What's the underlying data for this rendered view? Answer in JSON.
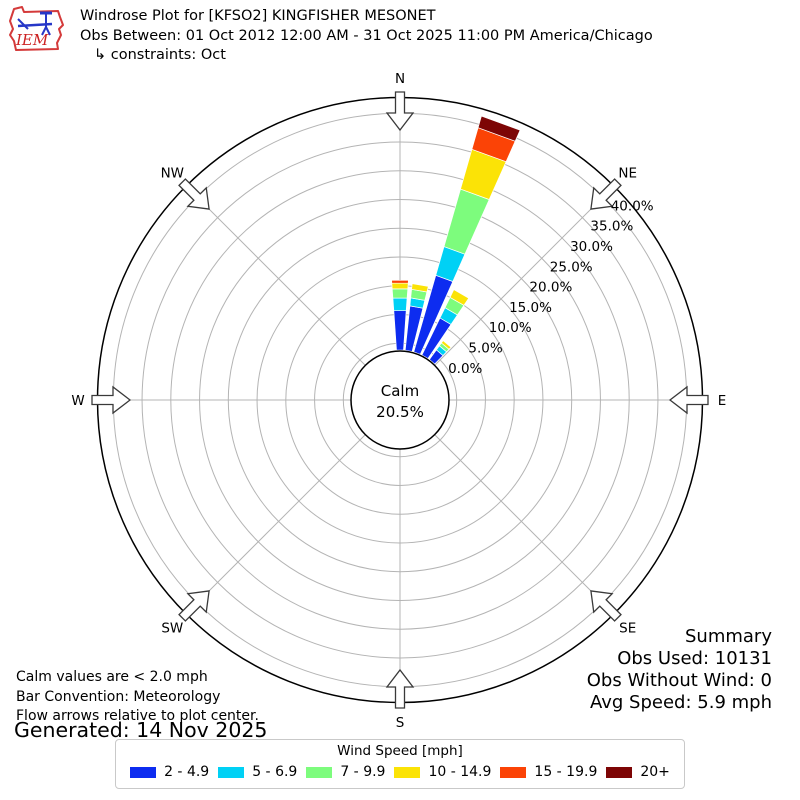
{
  "header": {
    "title": "Windrose Plot for [KFSO2] KINGFISHER MESONET",
    "subtitle": "Obs Between: 01 Oct 2012 12:00 AM - 31 Oct 2025 11:00 PM America/Chicago",
    "constraints": "↳ constraints: Oct",
    "logo_text": "IEM"
  },
  "notes": {
    "line1": "Calm values are < 2.0 mph",
    "line2": "Bar Convention: Meteorology",
    "line3": "Flow arrows relative to plot center.",
    "generated": "Generated: 14 Nov 2025"
  },
  "summary": {
    "title": "Summary",
    "obs_used": "Obs Used: 10131",
    "obs_without_wind": "Obs Without Wind: 0",
    "avg_speed": "Avg Speed: 5.9 mph"
  },
  "legend": {
    "title": "Wind Speed [mph]"
  },
  "chart_data": {
    "type": "windrose",
    "units": "mph",
    "sector_spacing_deg": 10,
    "sector_width_deg": 8,
    "direction_labels": [
      "N",
      "NE",
      "E",
      "SE",
      "S",
      "SW",
      "W",
      "NW"
    ],
    "ring_ticks": [
      {
        "value": 0,
        "label": "0.0%"
      },
      {
        "value": 5,
        "label": "5.0%"
      },
      {
        "value": 10,
        "label": "10.0%"
      },
      {
        "value": 15,
        "label": "15.0%"
      },
      {
        "value": 20,
        "label": "20.0%"
      },
      {
        "value": 25,
        "label": "25.0%"
      },
      {
        "value": 30,
        "label": "30.0%"
      },
      {
        "value": 35,
        "label": "35.0%"
      },
      {
        "value": 40,
        "label": "40.0%"
      }
    ],
    "rmax_pct": 42.8,
    "calm": {
      "label": "Calm",
      "value_label": "20.5%",
      "value_pct": 20.5
    },
    "speed_bins": [
      {
        "label": "2 - 4.9",
        "color": "#0d2cf0"
      },
      {
        "label": "5 - 6.9",
        "color": "#00d1f5"
      },
      {
        "label": "7 - 9.9",
        "color": "#7dfc7d"
      },
      {
        "label": "10 - 14.9",
        "color": "#fbe306"
      },
      {
        "label": "15 - 19.9",
        "color": "#fb4306"
      },
      {
        "label": "20+",
        "color": "#7d0505"
      }
    ],
    "bars": [
      {
        "dir_deg": 0,
        "pct": [
          5.7,
          2.2,
          1.6,
          1.0,
          0.5,
          0
        ]
      },
      {
        "dir_deg": 10,
        "pct": [
          6.6,
          1.4,
          1.5,
          1.0,
          0,
          0
        ]
      },
      {
        "dir_deg": 20,
        "pct": [
          12.7,
          5.2,
          10.4,
          7.2,
          3.9,
          2.1
        ]
      },
      {
        "dir_deg": 30,
        "pct": [
          6.0,
          2.0,
          2.0,
          1.5,
          0,
          0
        ]
      },
      {
        "dir_deg": 40,
        "pct": [
          0.9,
          0.9,
          0.6,
          0.5,
          0,
          0
        ]
      }
    ]
  }
}
